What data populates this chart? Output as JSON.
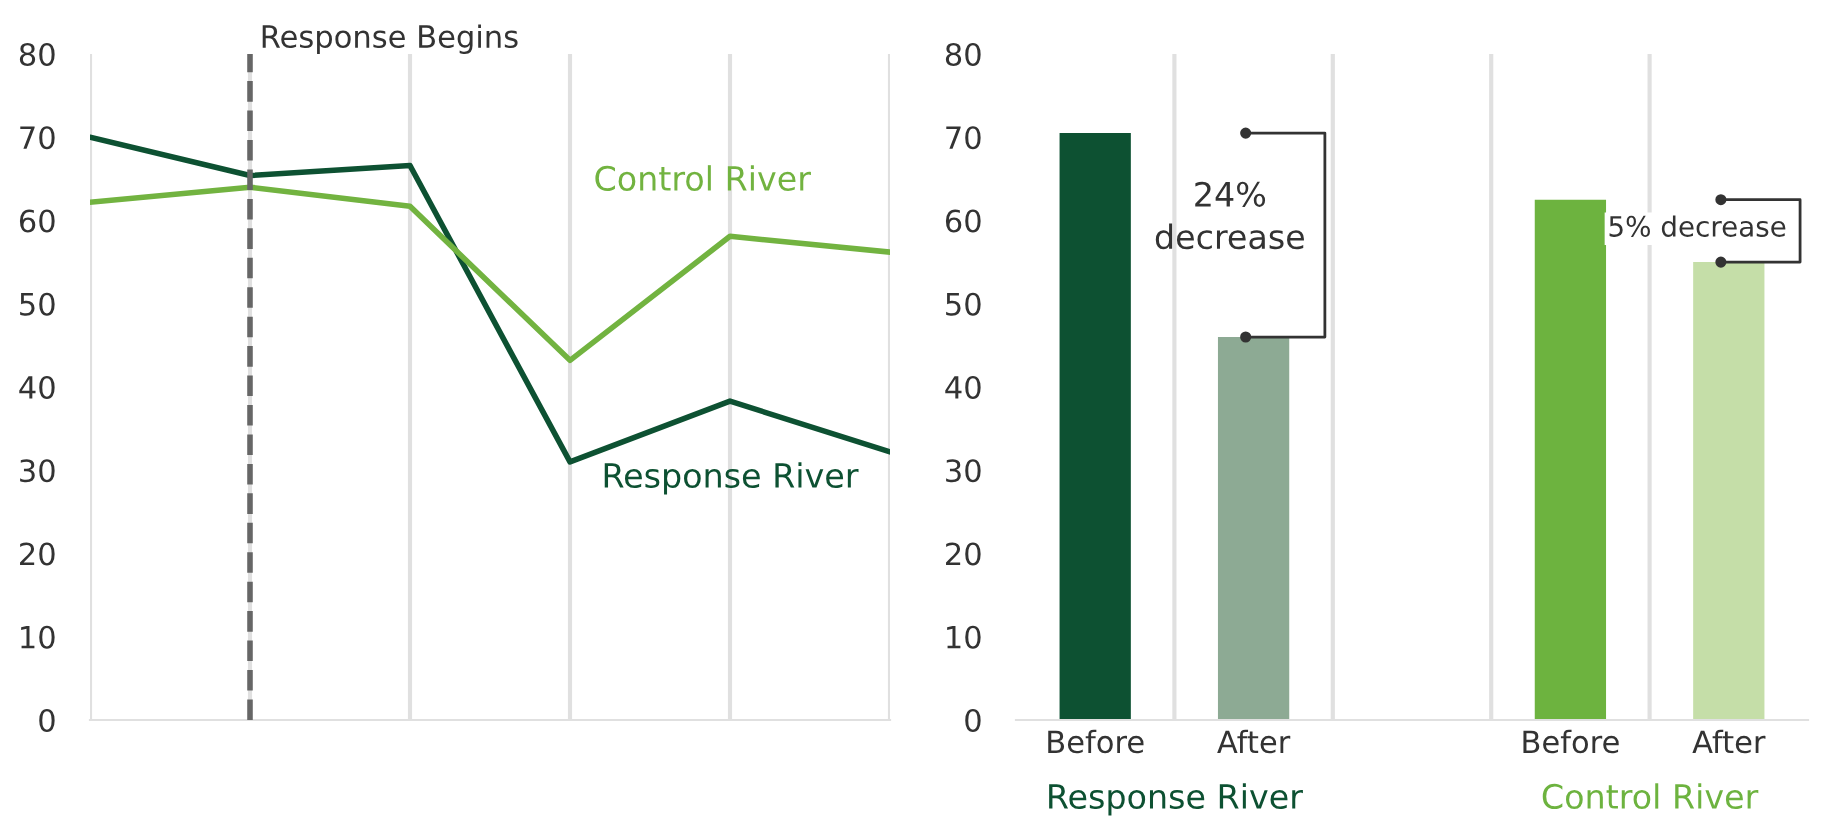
{
  "chart_data": [
    {
      "type": "line",
      "categories": [
        null,
        null,
        null,
        null,
        null,
        null
      ],
      "ylim": [
        0,
        80
      ],
      "yticks": [
        0,
        10,
        20,
        30,
        40,
        50,
        60,
        70,
        80
      ],
      "grid": "x",
      "series": [
        {
          "name": "Response River",
          "color": "#0d5132",
          "values": [
            70,
            65.4,
            66.6,
            31,
            38.3,
            32.2
          ]
        },
        {
          "name": "Control River",
          "color": "#72b340",
          "values": [
            62.2,
            64,
            61.7,
            43.2,
            58.1,
            56.2
          ]
        }
      ],
      "annotations": [
        "Response Begins"
      ]
    },
    {
      "type": "bar",
      "categories": [
        "Before",
        "After",
        null,
        "Before",
        "After"
      ],
      "values": [
        70.5,
        46,
        null,
        62.5,
        55
      ],
      "colors": [
        "#0d5132",
        "#8daa94",
        "#ffffff",
        "#6db33f",
        "#c5dea8"
      ],
      "ylim": [
        0,
        80
      ],
      "yticks": [
        0,
        10,
        20,
        30,
        40,
        50,
        60,
        70,
        80
      ],
      "grid": "x",
      "annotations": [
        "24%\ndecrease",
        "5% decrease",
        "Response River",
        "Control River"
      ]
    }
  ]
}
